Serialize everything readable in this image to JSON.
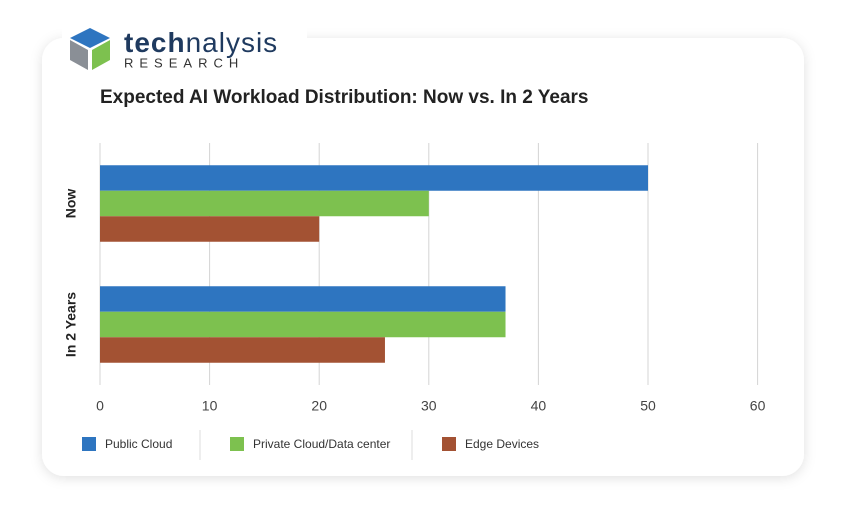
{
  "logo": {
    "name": [
      "tech",
      "nalysis"
    ],
    "tagline": "RESEARCH"
  },
  "chart_data": {
    "type": "bar",
    "orientation": "horizontal",
    "title": "Expected AI Workload Distribution: Now vs. In 2 Years",
    "categories": [
      "Now",
      "In 2 Years"
    ],
    "series": [
      {
        "name": "Public Cloud",
        "color": "#2e75c0",
        "values": [
          50,
          37
        ]
      },
      {
        "name": "Private Cloud/Data center",
        "color": "#7dc14f",
        "values": [
          30,
          37
        ]
      },
      {
        "name": "Edge Devices",
        "color": "#a35233",
        "values": [
          20,
          26
        ]
      }
    ],
    "xlim": [
      0,
      60
    ],
    "xticks": [
      0,
      10,
      20,
      30,
      40,
      50,
      60
    ],
    "grid": true,
    "legend": "bottom"
  }
}
